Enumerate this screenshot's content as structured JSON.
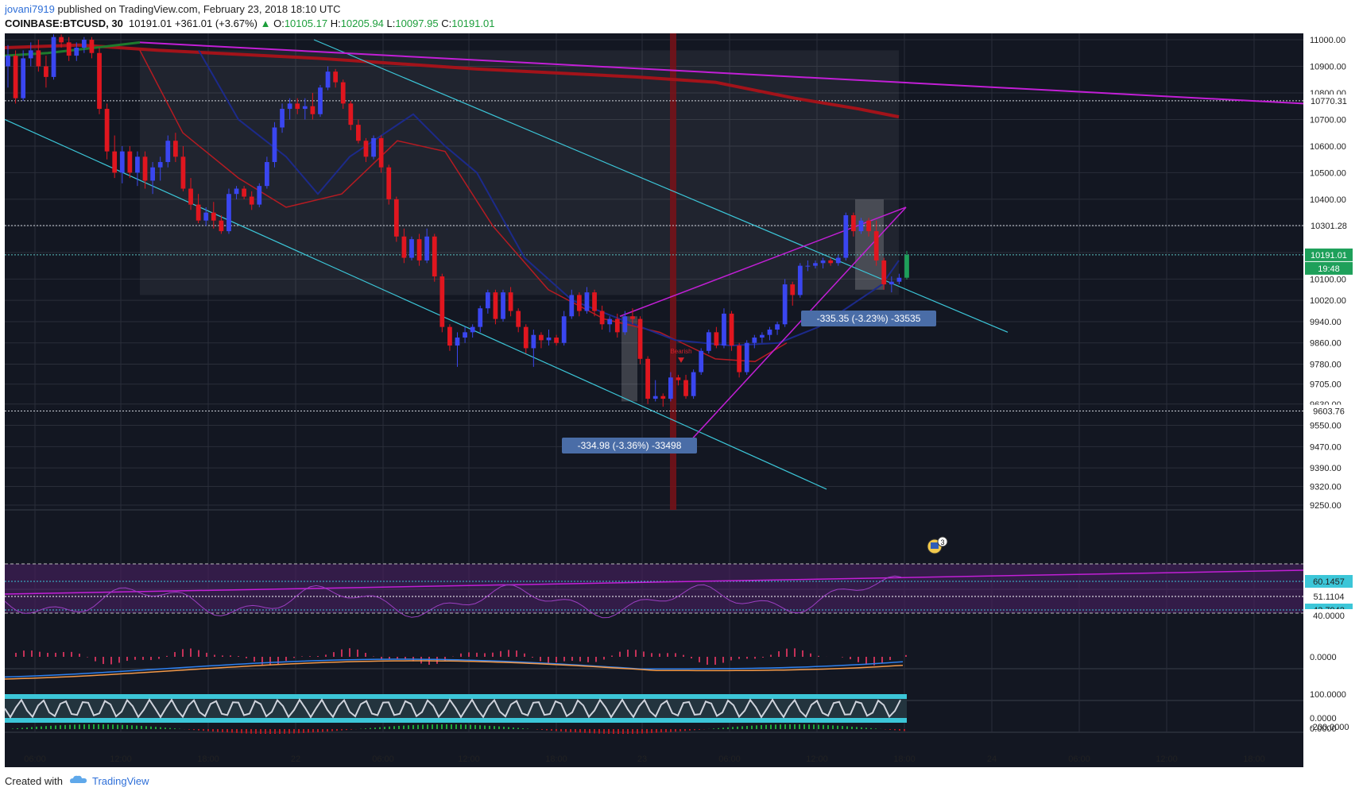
{
  "header": {
    "publisher": "jovani7919",
    "published_text": " published on TradingView.com, February 23, 2018 18:10 UTC",
    "symbol": "COINBASE:BTCUSD, 30",
    "last": "10191.01",
    "change": "+361.01 (+3.67%)",
    "o_label": "O:",
    "o_value": "10105.17",
    "h_label": "H:",
    "h_value": "10205.94",
    "l_label": "L:",
    "l_value": "10097.95",
    "c_label": "C:",
    "c_value": "10191.01"
  },
  "footer": {
    "created_with": "Created with",
    "brand": "TradingView"
  },
  "colors": {
    "background": "#131722",
    "grid": "#2a2e39",
    "up": "#3a46f0",
    "down": "#e0161f",
    "channel": "#3cc6d8",
    "wedge": "#c21fd6",
    "ma_red": "#a3131a",
    "ma_navy": "#1c2a8a",
    "price_label": "#1ea05a"
  },
  "chart_data": {
    "type": "candlestick",
    "price_axis_ticks": [
      "11000.00",
      "10900.00",
      "10800.00",
      "10700.00",
      "10600.00",
      "10500.00",
      "10400.00",
      "10301.28",
      "10191.01",
      "10100.00",
      "10020.00",
      "9940.00",
      "9860.00",
      "9780.00",
      "9705.00",
      "9630.00",
      "9603.76",
      "9550.00",
      "9470.00",
      "9390.00",
      "9320.00",
      "9250.00"
    ],
    "price_labels": {
      "line1": "10770.31",
      "line2": "10301.28",
      "current": "10191.01",
      "countdown": "19:48",
      "low_line": "9603.76"
    },
    "time_axis_ticks": [
      "06:00",
      "12:00",
      "18:00",
      "22",
      "06:00",
      "12:00",
      "18:00",
      "23",
      "06:00",
      "12:00",
      "18:00",
      "24",
      "06:00",
      "12:00",
      "18:00"
    ],
    "measurements": [
      {
        "text": "-335.35 (-3.23%) -33535"
      },
      {
        "text": "-334.98 (-3.36%) -33498"
      }
    ],
    "annotation": "Bearish",
    "rsi_labels": [
      "60.1457",
      "51.1104",
      "43.7942",
      "40.0000"
    ],
    "macd_labels": [
      "0.0000",
      "-200.0000"
    ],
    "stoch_labels": [
      "100.0000",
      "0.0000"
    ],
    "volume_labels": [
      "0.0000"
    ],
    "event_badge": "3",
    "candles": [
      [
        10900,
        10980,
        10820,
        10940
      ],
      [
        10940,
        10960,
        10760,
        10780
      ],
      [
        10780,
        10960,
        10770,
        10930
      ],
      [
        10930,
        10990,
        10900,
        10960
      ],
      [
        10960,
        11000,
        10880,
        10900
      ],
      [
        10900,
        10940,
        10820,
        10860
      ],
      [
        10860,
        11020,
        10850,
        11010
      ],
      [
        11010,
        11020,
        10970,
        10990
      ],
      [
        10990,
        11010,
        10920,
        10940
      ],
      [
        10940,
        10990,
        10920,
        10970
      ],
      [
        10970,
        11010,
        10950,
        11000
      ],
      [
        11000,
        11010,
        10930,
        10950
      ],
      [
        10950,
        10970,
        10720,
        10740
      ],
      [
        10740,
        10760,
        10550,
        10580
      ],
      [
        10580,
        10640,
        10480,
        10500
      ],
      [
        10500,
        10600,
        10460,
        10580
      ],
      [
        10580,
        10600,
        10480,
        10500
      ],
      [
        10500,
        10580,
        10450,
        10560
      ],
      [
        10560,
        10580,
        10440,
        10470
      ],
      [
        10470,
        10540,
        10420,
        10520
      ],
      [
        10520,
        10560,
        10470,
        10540
      ],
      [
        10540,
        10640,
        10520,
        10620
      ],
      [
        10620,
        10650,
        10540,
        10560
      ],
      [
        10560,
        10600,
        10430,
        10440
      ],
      [
        10440,
        10480,
        10360,
        10380
      ],
      [
        10380,
        10420,
        10310,
        10320
      ],
      [
        10320,
        10370,
        10300,
        10350
      ],
      [
        10350,
        10390,
        10290,
        10320
      ],
      [
        10320,
        10340,
        10270,
        10280
      ],
      [
        10280,
        10440,
        10270,
        10420
      ],
      [
        10420,
        10450,
        10400,
        10440
      ],
      [
        10440,
        10450,
        10400,
        10410
      ],
      [
        10410,
        10430,
        10360,
        10380
      ],
      [
        10380,
        10460,
        10370,
        10450
      ],
      [
        10450,
        10560,
        10440,
        10540
      ],
      [
        10540,
        10690,
        10520,
        10670
      ],
      [
        10670,
        10760,
        10650,
        10740
      ],
      [
        10740,
        10780,
        10700,
        10760
      ],
      [
        10760,
        10780,
        10720,
        10740
      ],
      [
        10740,
        10780,
        10700,
        10750
      ],
      [
        10750,
        10800,
        10700,
        10720
      ],
      [
        10720,
        10830,
        10710,
        10820
      ],
      [
        10820,
        10900,
        10810,
        10880
      ],
      [
        10880,
        10890,
        10820,
        10840
      ],
      [
        10840,
        10850,
        10740,
        10760
      ],
      [
        10760,
        10770,
        10660,
        10680
      ],
      [
        10680,
        10700,
        10610,
        10620
      ],
      [
        10620,
        10630,
        10540,
        10560
      ],
      [
        10560,
        10640,
        10550,
        10630
      ],
      [
        10630,
        10640,
        10500,
        10520
      ],
      [
        10520,
        10530,
        10380,
        10400
      ],
      [
        10400,
        10410,
        10240,
        10260
      ],
      [
        10260,
        10290,
        10160,
        10180
      ],
      [
        10180,
        10260,
        10170,
        10250
      ],
      [
        10250,
        10270,
        10150,
        10170
      ],
      [
        10170,
        10290,
        10160,
        10260
      ],
      [
        10260,
        10270,
        10090,
        10110
      ],
      [
        10110,
        10120,
        9900,
        9920
      ],
      [
        9920,
        9930,
        9830,
        9850
      ],
      [
        9850,
        9900,
        9770,
        9880
      ],
      [
        9880,
        9920,
        9860,
        9900
      ],
      [
        9900,
        9930,
        9880,
        9920
      ],
      [
        9920,
        10000,
        9900,
        9990
      ],
      [
        9990,
        10060,
        9970,
        10050
      ],
      [
        10050,
        10060,
        9930,
        9950
      ],
      [
        9950,
        10060,
        9940,
        10050
      ],
      [
        10050,
        10070,
        9960,
        9980
      ],
      [
        9980,
        9990,
        9900,
        9920
      ],
      [
        9920,
        9930,
        9820,
        9840
      ],
      [
        9840,
        9910,
        9770,
        9890
      ],
      [
        9890,
        9900,
        9840,
        9870
      ],
      [
        9870,
        9910,
        9850,
        9880
      ],
      [
        9880,
        9890,
        9850,
        9860
      ],
      [
        9860,
        9980,
        9850,
        9960
      ],
      [
        9960,
        10060,
        9950,
        10040
      ],
      [
        10040,
        10050,
        9960,
        9980
      ],
      [
        9980,
        10070,
        9970,
        10050
      ],
      [
        10050,
        10060,
        9960,
        9980
      ],
      [
        9980,
        10000,
        9910,
        9930
      ],
      [
        9930,
        9960,
        9900,
        9950
      ],
      [
        9950,
        9970,
        9880,
        9900
      ],
      [
        9900,
        9980,
        9890,
        9960
      ],
      [
        9960,
        9990,
        9930,
        9950
      ],
      [
        9950,
        9960,
        9780,
        9800
      ],
      [
        9800,
        9810,
        9630,
        9650
      ],
      [
        9650,
        9720,
        9640,
        9660
      ],
      [
        9660,
        9670,
        9620,
        9650
      ],
      [
        9650,
        9750,
        9640,
        9730
      ],
      [
        9730,
        9740,
        9700,
        9720
      ],
      [
        9720,
        9740,
        9650,
        9660
      ],
      [
        9660,
        9760,
        9650,
        9750
      ],
      [
        9750,
        9840,
        9740,
        9830
      ],
      [
        9830,
        9910,
        9820,
        9900
      ],
      [
        9900,
        9920,
        9840,
        9850
      ],
      [
        9850,
        9990,
        9840,
        9970
      ],
      [
        9970,
        9980,
        9830,
        9850
      ],
      [
        9850,
        9860,
        9730,
        9750
      ],
      [
        9750,
        9870,
        9740,
        9860
      ],
      [
        9860,
        9890,
        9840,
        9880
      ],
      [
        9880,
        9900,
        9860,
        9890
      ],
      [
        9890,
        9920,
        9870,
        9910
      ],
      [
        9910,
        9940,
        9890,
        9930
      ],
      [
        9930,
        10100,
        9920,
        10080
      ],
      [
        10080,
        10090,
        10000,
        10040
      ],
      [
        10040,
        10160,
        10030,
        10150
      ],
      [
        10150,
        10170,
        10130,
        10150
      ],
      [
        10150,
        10170,
        10140,
        10160
      ],
      [
        10160,
        10180,
        10140,
        10170
      ],
      [
        10170,
        10180,
        10150,
        10160
      ],
      [
        10160,
        10190,
        10150,
        10180
      ],
      [
        10180,
        10350,
        10170,
        10340
      ],
      [
        10340,
        10350,
        10260,
        10280
      ],
      [
        10280,
        10330,
        10270,
        10320
      ],
      [
        10320,
        10330,
        10260,
        10280
      ],
      [
        10280,
        10320,
        10150,
        10170
      ],
      [
        10170,
        10180,
        10060,
        10080
      ],
      [
        10080,
        10110,
        10050,
        10090
      ],
      [
        10090,
        10120,
        10080,
        10105
      ],
      [
        10105,
        10206,
        10098,
        10191
      ]
    ]
  }
}
